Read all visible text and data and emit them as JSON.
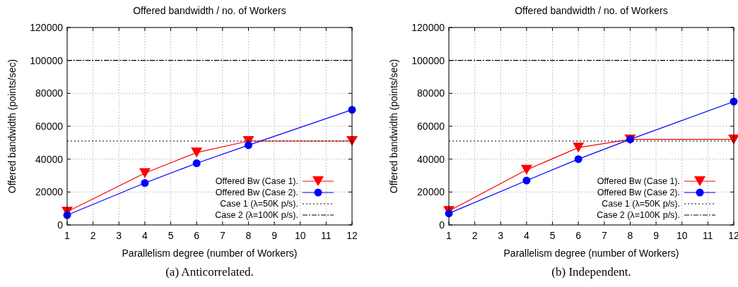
{
  "chart_data": [
    {
      "type": "line",
      "title": "Offered bandwidth / no. of Workers",
      "xlabel": "Parallelism degree (number of Workers)",
      "ylabel": "Offered bandwidth (points/sec)",
      "annotations": [
        "(a) Anticorrelated."
      ],
      "xlim": [
        1,
        12
      ],
      "xticks": [
        1,
        2,
        3,
        4,
        5,
        6,
        7,
        8,
        9,
        10,
        11,
        12
      ],
      "ylim": [
        0,
        120000
      ],
      "yticks": [
        0,
        20000,
        40000,
        60000,
        80000,
        100000,
        120000
      ],
      "grid": true,
      "legend": "bottom right",
      "series": [
        {
          "name": "Offered Bw (Case 1).",
          "color": "#ff0000",
          "x": [
            1,
            4,
            6,
            8,
            12
          ],
          "values": [
            8000,
            31500,
            44000,
            51000,
            51000
          ],
          "marker": "triangle",
          "line_style": "solid"
        },
        {
          "name": "Offered Bw (Case 2).",
          "color": "#0000ff",
          "x": [
            1,
            4,
            6,
            8,
            12
          ],
          "values": [
            6000,
            25500,
            37500,
            48500,
            70000
          ],
          "marker": "circle",
          "line_style": "solid"
        },
        {
          "name": "Case 1 (λ=50K p/s).",
          "color": "#000000",
          "x": [
            1,
            12
          ],
          "values": [
            51000,
            51000
          ],
          "marker": "none",
          "line_style": "dotted"
        },
        {
          "name": "Case 2 (λ=100K p/s).",
          "color": "#000000",
          "x": [
            1,
            12
          ],
          "values": [
            100000,
            100000
          ],
          "marker": "none",
          "line_style": "dashed"
        }
      ]
    },
    {
      "type": "line",
      "title": "Offered bandwidth / no. of Workers",
      "xlabel": "Parallelism degree (number of Workers)",
      "ylabel": "Offered bandwidth (points/sec)",
      "annotations": [
        "(b) Independent."
      ],
      "xlim": [
        1,
        12
      ],
      "xticks": [
        1,
        2,
        3,
        4,
        5,
        6,
        7,
        8,
        9,
        10,
        11,
        12
      ],
      "ylim": [
        0,
        120000
      ],
      "yticks": [
        0,
        20000,
        40000,
        60000,
        80000,
        100000,
        120000
      ],
      "grid": true,
      "legend": "bottom right",
      "series": [
        {
          "name": "Offered Bw (Case 1).",
          "color": "#ff0000",
          "x": [
            1,
            4,
            6,
            8,
            12
          ],
          "values": [
            8500,
            33500,
            47000,
            52000,
            52000
          ],
          "marker": "triangle",
          "line_style": "solid"
        },
        {
          "name": "Offered Bw (Case 2).",
          "color": "#0000ff",
          "x": [
            1,
            4,
            6,
            8,
            12
          ],
          "values": [
            7000,
            27000,
            40000,
            52000,
            75000
          ],
          "marker": "circle",
          "line_style": "solid"
        },
        {
          "name": "Case 1 (λ=50K p/s).",
          "color": "#000000",
          "x": [
            1,
            12
          ],
          "values": [
            51000,
            51000
          ],
          "marker": "none",
          "line_style": "dotted"
        },
        {
          "name": "Case 2 (λ=100K p/s).",
          "color": "#000000",
          "x": [
            1,
            12
          ],
          "values": [
            100000,
            100000
          ],
          "marker": "none",
          "line_style": "dashed"
        }
      ]
    }
  ]
}
